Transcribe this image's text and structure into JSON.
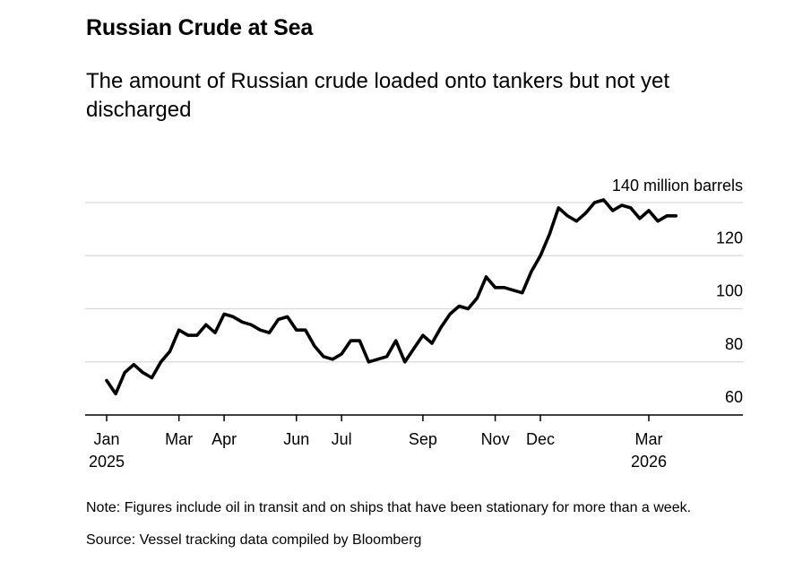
{
  "chart_data": {
    "type": "line",
    "title": "Russian Crude at Sea",
    "subtitle": "The amount of Russian crude loaded onto tankers but not yet discharged",
    "unit_label": "140 million barrels",
    "y_ticks": [
      "60",
      "80",
      "100",
      "120"
    ],
    "x_ticks": [
      {
        "label": "Jan",
        "year": "2025",
        "t": 0
      },
      {
        "label": "Mar",
        "year": "",
        "t": 8
      },
      {
        "label": "Apr",
        "year": "",
        "t": 13
      },
      {
        "label": "Jun",
        "year": "",
        "t": 21
      },
      {
        "label": "Jul",
        "year": "",
        "t": 26
      },
      {
        "label": "Sep",
        "year": "",
        "t": 35
      },
      {
        "label": "Nov",
        "year": "",
        "t": 43
      },
      {
        "label": "Dec",
        "year": "",
        "t": 48
      },
      {
        "label": "Mar",
        "year": "2026",
        "t": 60
      }
    ],
    "ylim": [
      60,
      140
    ],
    "xlim": [
      -2,
      68
    ],
    "series": [
      {
        "name": "Russian crude at sea",
        "values": [
          73,
          68,
          76,
          79,
          76,
          74,
          80,
          84,
          92,
          90,
          90,
          94,
          91,
          98,
          97,
          95,
          94,
          92,
          91,
          96,
          97,
          92,
          92,
          86,
          82,
          81,
          83,
          88,
          88,
          80,
          81,
          82,
          88,
          80,
          85,
          90,
          87,
          93,
          98,
          101,
          100,
          104,
          112,
          108,
          108,
          107,
          106,
          114,
          120,
          128,
          138,
          135,
          133,
          136,
          140,
          141,
          137,
          139,
          138,
          134,
          137,
          133,
          135,
          135
        ]
      }
    ]
  },
  "footer": {
    "note": "Note: Figures include oil in transit and on ships that have been stationary for more than a week.",
    "source": "Source: Vessel tracking data compiled by Bloomberg"
  },
  "colors": {
    "line": "#000000",
    "grid": "#d9d9d9",
    "axis": "#000000"
  }
}
